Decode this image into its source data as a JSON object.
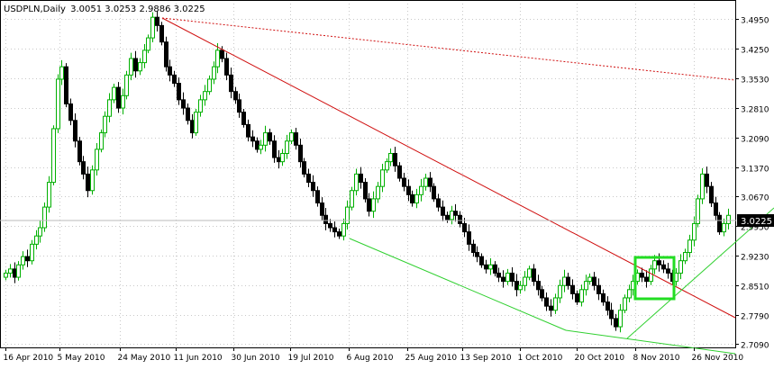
{
  "header": {
    "symbol": "USDPLN,Daily",
    "ohlc": "3.0051 3.0253 2.9886 3.0225"
  },
  "price_badge": "3.0225",
  "colors": {
    "bull_candle": "#00b000",
    "bear_candle": "#000000",
    "grid": "#c8c8c8",
    "downtrend_line": "#d01010",
    "support_line": "#30d030",
    "highlight_box": "#22dd22",
    "badge_bg": "#000000",
    "badge_text": "#ffffff"
  },
  "chart_data": {
    "type": "candlestick",
    "y_ticks": [
      "3.4950",
      "3.4250",
      "3.3530",
      "3.2810",
      "3.2090",
      "3.1370",
      "3.0670",
      "2.9950",
      "2.9230",
      "2.8510",
      "2.7790",
      "2.7090"
    ],
    "ylim": [
      2.7,
      3.52
    ],
    "x_tick_labels": [
      "16 Apr 2010",
      "5 May 2010",
      "24 May 2010",
      "11 Jun 2010",
      "30 Jun 2010",
      "19 Jul 2010",
      "6 Aug 2010",
      "25 Aug 2010",
      "13 Sep 2010",
      "1 Oct 2010",
      "20 Oct 2010",
      "8 Nov 2010",
      "26 Nov 2010"
    ],
    "grid": true,
    "last_close": 3.0225,
    "closes": [
      2.88,
      2.89,
      2.87,
      2.9,
      2.92,
      2.91,
      2.95,
      2.97,
      2.99,
      3.04,
      3.1,
      3.23,
      3.35,
      3.38,
      3.29,
      3.25,
      3.2,
      3.15,
      3.12,
      3.08,
      3.13,
      3.18,
      3.22,
      3.26,
      3.3,
      3.33,
      3.28,
      3.31,
      3.36,
      3.4,
      3.37,
      3.39,
      3.42,
      3.45,
      3.5,
      3.48,
      3.44,
      3.38,
      3.36,
      3.34,
      3.3,
      3.28,
      3.25,
      3.22,
      3.27,
      3.3,
      3.32,
      3.35,
      3.38,
      3.42,
      3.4,
      3.36,
      3.32,
      3.3,
      3.27,
      3.24,
      3.21,
      3.2,
      3.18,
      3.19,
      3.22,
      3.2,
      3.16,
      3.15,
      3.17,
      3.2,
      3.22,
      3.19,
      3.15,
      3.12,
      3.1,
      3.08,
      3.05,
      3.02,
      3.0,
      2.99,
      2.98,
      2.97,
      3.0,
      3.04,
      3.08,
      3.12,
      3.1,
      3.06,
      3.03,
      3.06,
      3.09,
      3.13,
      3.15,
      3.17,
      3.14,
      3.11,
      3.09,
      3.07,
      3.05,
      3.07,
      3.09,
      3.11,
      3.09,
      3.06,
      3.04,
      3.02,
      3.01,
      3.03,
      3.02,
      3.0,
      2.98,
      2.95,
      2.93,
      2.92,
      2.9,
      2.89,
      2.9,
      2.88,
      2.87,
      2.86,
      2.88,
      2.86,
      2.84,
      2.85,
      2.87,
      2.89,
      2.86,
      2.84,
      2.82,
      2.8,
      2.79,
      2.82,
      2.85,
      2.87,
      2.85,
      2.83,
      2.81,
      2.84,
      2.86,
      2.87,
      2.85,
      2.83,
      2.81,
      2.79,
      2.77,
      2.75,
      2.79,
      2.82,
      2.84,
      2.86,
      2.88,
      2.87,
      2.86,
      2.89,
      2.91,
      2.9,
      2.89,
      2.88,
      2.86,
      2.88,
      2.91,
      2.93,
      2.96,
      3.0,
      3.06,
      3.12,
      3.09,
      3.05,
      3.02,
      2.98,
      3.0,
      3.02
    ]
  }
}
